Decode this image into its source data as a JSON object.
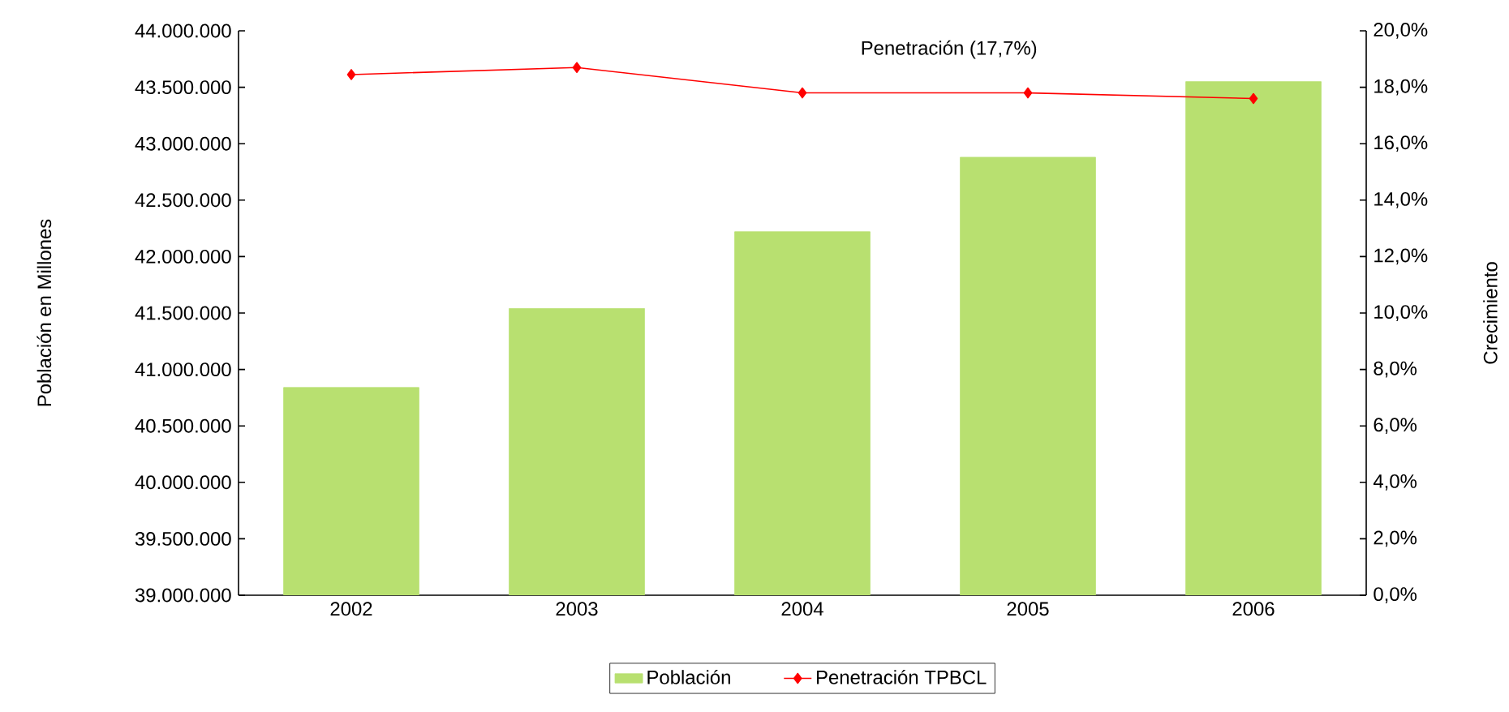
{
  "chart_data": {
    "type": "bar",
    "ylabel": "Población en Millones",
    "y2label": "Crecimiento",
    "categories": [
      "2002",
      "2003",
      "2004",
      "2005",
      "2006"
    ],
    "series": [
      {
        "name": "Población",
        "color": "#b8e070",
        "values": [
          40840000,
          41540000,
          42220000,
          42880000,
          43550000
        ]
      },
      {
        "name": "Penetración TPBCL",
        "type": "line",
        "axis": "y2",
        "color": "#ff0000",
        "marker": "diamond",
        "values": [
          18.45,
          18.7,
          17.8,
          17.8,
          17.6
        ]
      }
    ],
    "ylim": [
      39000000,
      44000000
    ],
    "yticks": [
      {
        "value": 39000000,
        "label": "39.000.000"
      },
      {
        "value": 39500000,
        "label": "39.500.000"
      },
      {
        "value": 40000000,
        "label": "40.000.000"
      },
      {
        "value": 40500000,
        "label": "40.500.000"
      },
      {
        "value": 41000000,
        "label": "41.000.000"
      },
      {
        "value": 41500000,
        "label": "41.500.000"
      },
      {
        "value": 42000000,
        "label": "42.000.000"
      },
      {
        "value": 42500000,
        "label": "42.500.000"
      },
      {
        "value": 43000000,
        "label": "43.000.000"
      },
      {
        "value": 43500000,
        "label": "43.500.000"
      },
      {
        "value": 44000000,
        "label": "44.000.000"
      }
    ],
    "y2lim": [
      0,
      20
    ],
    "y2ticks": [
      {
        "value": 0,
        "label": "0,0%"
      },
      {
        "value": 2,
        "label": "2,0%"
      },
      {
        "value": 4,
        "label": "4,0%"
      },
      {
        "value": 6,
        "label": "6,0%"
      },
      {
        "value": 8,
        "label": "8,0%"
      },
      {
        "value": 10,
        "label": "10,0%"
      },
      {
        "value": 12,
        "label": "12,0%"
      },
      {
        "value": 14,
        "label": "14,0%"
      },
      {
        "value": 16,
        "label": "16,0%"
      },
      {
        "value": 18,
        "label": "18,0%"
      },
      {
        "value": 20,
        "label": "20,0%"
      }
    ],
    "annotations": [
      "Penetración (17,7%)"
    ],
    "legend": "bottom",
    "grid": false
  }
}
